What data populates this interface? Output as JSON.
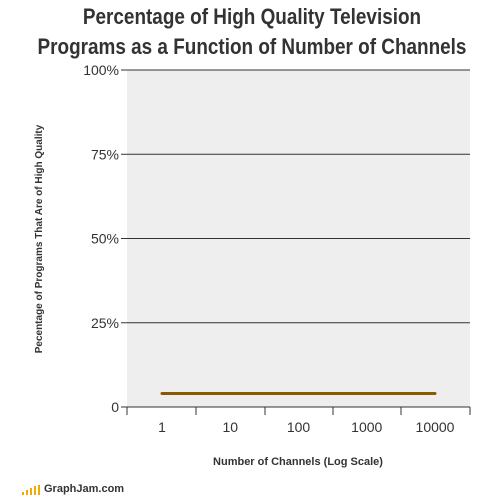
{
  "title": {
    "line1": "Percentage of High Quality Television",
    "line2": "Programs as a Function of Number of Channels"
  },
  "footer": {
    "site": "GraphJam.com",
    "logo_color": "#f2a900"
  },
  "colors": {
    "plot_background": "#eeeeee",
    "grid": "#333333",
    "line": "#8a5a00"
  },
  "chart_data": {
    "type": "line",
    "title": "Percentage of High Quality Television Programs as a Function of Number of Channels",
    "xlabel": "Number of Channels (Log Scale)",
    "ylabel": "Pecentage of Programs That Are of High Quality",
    "x_scale": "log",
    "x_ticks": [
      1,
      10,
      100,
      1000,
      10000
    ],
    "x_tick_labels": [
      "1",
      "10",
      "100",
      "1000",
      "10000"
    ],
    "y_ticks": [
      0,
      25,
      50,
      75,
      100
    ],
    "y_tick_labels": [
      "0",
      "25%",
      "50%",
      "75%",
      "100%"
    ],
    "ylim": [
      0,
      100
    ],
    "grid": true,
    "series": [
      {
        "x": [
          1,
          10000
        ],
        "values": [
          4,
          4
        ]
      }
    ]
  }
}
